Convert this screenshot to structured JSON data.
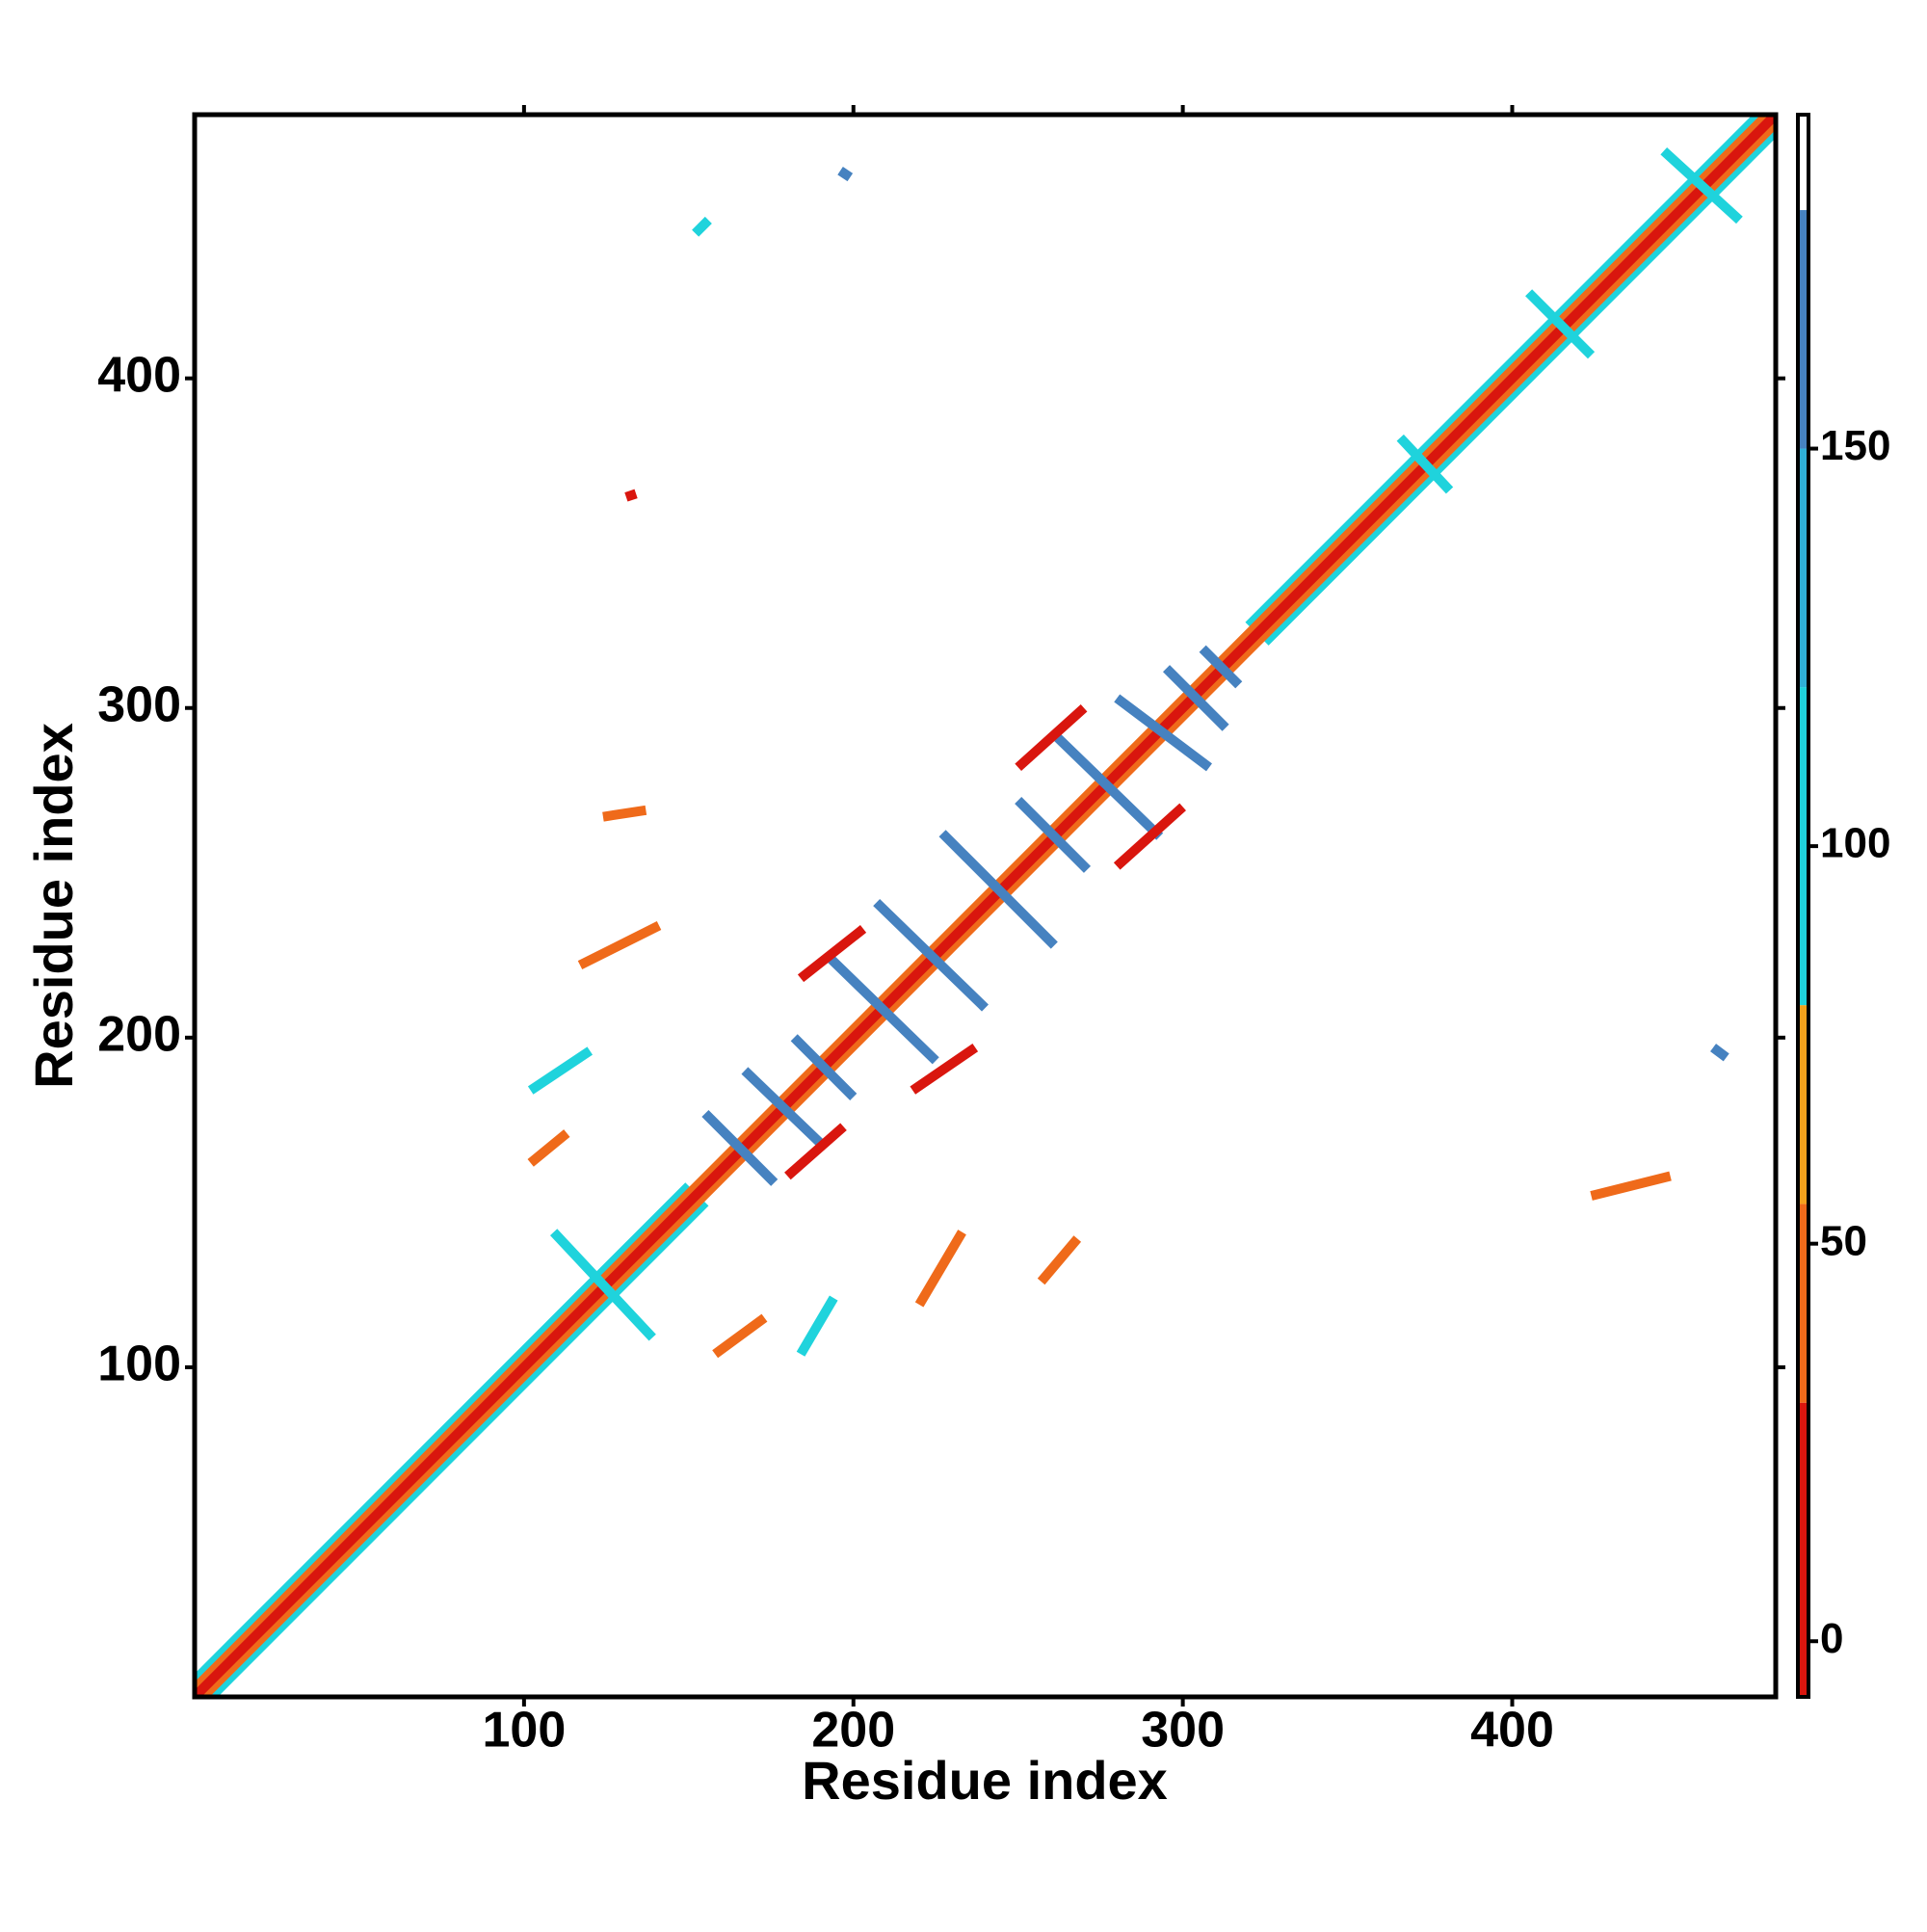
{
  "chart_data": {
    "type": "contact-map",
    "xlabel": "Residue index",
    "ylabel": "Residue index",
    "xlim": [
      0,
      480
    ],
    "ylim": [
      0,
      480
    ],
    "xticks": [
      100,
      200,
      300,
      400
    ],
    "yticks": [
      100,
      200,
      300,
      400
    ],
    "colorbar": {
      "lim": [
        -7,
        192
      ],
      "ticks": [
        0,
        50,
        100,
        150
      ],
      "bands": [
        {
          "from": -7,
          "to": 30,
          "color": "#d9160e"
        },
        {
          "from": 30,
          "to": 55,
          "color": "#ef6a1a"
        },
        {
          "from": 55,
          "to": 80,
          "color": "#f4a21c"
        },
        {
          "from": 80,
          "to": 120,
          "color": "#1fd3dc"
        },
        {
          "from": 120,
          "to": 150,
          "color": "#2fb0d8"
        },
        {
          "from": 150,
          "to": 180,
          "color": "#4682c0"
        },
        {
          "from": 180,
          "to": 192,
          "color": "#ffffff"
        }
      ]
    },
    "segments": [
      {
        "x": [
          0,
          150
        ],
        "y": [
          5,
          155
        ],
        "value": 110
      },
      {
        "x": [
          5,
          155
        ],
        "y": [
          0,
          150
        ],
        "value": 110
      },
      {
        "x": [
          320,
          475
        ],
        "y": [
          325,
          480
        ],
        "value": 110
      },
      {
        "x": [
          325,
          480
        ],
        "y": [
          320,
          475
        ],
        "value": 110
      },
      {
        "x": [
          0,
          477.5
        ],
        "y": [
          2.5,
          480
        ],
        "value": 50
      },
      {
        "x": [
          2.5,
          480
        ],
        "y": [
          0,
          477.5
        ],
        "value": 50
      },
      {
        "x": [
          0,
          480
        ],
        "y": [
          0,
          480
        ],
        "value": 10
      },
      {
        "x": [
          155,
          176
        ],
        "y": [
          177,
          156
        ],
        "value": 160
      },
      {
        "x": [
          167,
          191
        ],
        "y": [
          190,
          167
        ],
        "value": 160
      },
      {
        "x": [
          182,
          200
        ],
        "y": [
          200,
          182
        ],
        "value": 160
      },
      {
        "x": [
          192,
          225
        ],
        "y": [
          225,
          193
        ],
        "value": 160
      },
      {
        "x": [
          207,
          240
        ],
        "y": [
          241,
          209
        ],
        "value": 160
      },
      {
        "x": [
          227,
          261
        ],
        "y": [
          262,
          228
        ],
        "value": 160
      },
      {
        "x": [
          250,
          271
        ],
        "y": [
          272,
          251
        ],
        "value": 160
      },
      {
        "x": [
          262,
          293
        ],
        "y": [
          291,
          261
        ],
        "value": 160
      },
      {
        "x": [
          280,
          308
        ],
        "y": [
          303,
          282
        ],
        "value": 160
      },
      {
        "x": [
          295,
          313
        ],
        "y": [
          312,
          294
        ],
        "value": 160
      },
      {
        "x": [
          306,
          317
        ],
        "y": [
          318,
          307
        ],
        "value": 160
      },
      {
        "x": [
          109,
          139
        ],
        "y": [
          141,
          109
        ],
        "value": 100
      },
      {
        "x": [
          366,
          381
        ],
        "y": [
          382,
          366
        ],
        "value": 100
      },
      {
        "x": [
          405,
          424
        ],
        "y": [
          426,
          407
        ],
        "value": 100
      },
      {
        "x": [
          446,
          469
        ],
        "y": [
          469,
          448
        ],
        "value": 100
      },
      {
        "x": [
          196,
          199
        ],
        "y": [
          463,
          461
        ],
        "value": 160
      },
      {
        "x": [
          461,
          465
        ],
        "y": [
          197,
          194
        ],
        "value": 160
      },
      {
        "x": [
          124,
          137
        ],
        "y": [
          267,
          269
        ],
        "value": 45
      },
      {
        "x": [
          117,
          141
        ],
        "y": [
          222,
          234
        ],
        "value": 45
      },
      {
        "x": [
          158,
          173
        ],
        "y": [
          104,
          115
        ],
        "value": 45
      },
      {
        "x": [
          220,
          233
        ],
        "y": [
          119,
          141
        ],
        "value": 45
      },
      {
        "x": [
          257,
          268
        ],
        "y": [
          126,
          139
        ],
        "value": 45
      },
      {
        "x": [
          102,
          120
        ],
        "y": [
          184,
          196
        ],
        "value": 100
      },
      {
        "x": [
          102,
          113
        ],
        "y": [
          162,
          171
        ],
        "value": 45
      },
      {
        "x": [
          184,
          194
        ],
        "y": [
          104,
          121
        ],
        "value": 100
      },
      {
        "x": [
          424,
          448
        ],
        "y": [
          152,
          158
        ],
        "value": 45
      },
      {
        "x": [
          152,
          156
        ],
        "y": [
          444,
          448
        ],
        "value": 100
      },
      {
        "x": [
          131,
          134
        ],
        "y": [
          364,
          365
        ],
        "value": 10
      },
      {
        "x": [
          250,
          270
        ],
        "y": [
          282,
          300
        ],
        "value": 10
      },
      {
        "x": [
          184,
          203
        ],
        "y": [
          218,
          233
        ],
        "value": 10
      },
      {
        "x": [
          218,
          237
        ],
        "y": [
          184,
          197
        ],
        "value": 10
      },
      {
        "x": [
          280,
          300
        ],
        "y": [
          252,
          270
        ],
        "value": 10
      },
      {
        "x": [
          180,
          197
        ],
        "y": [
          158,
          173
        ],
        "value": 10
      }
    ]
  }
}
